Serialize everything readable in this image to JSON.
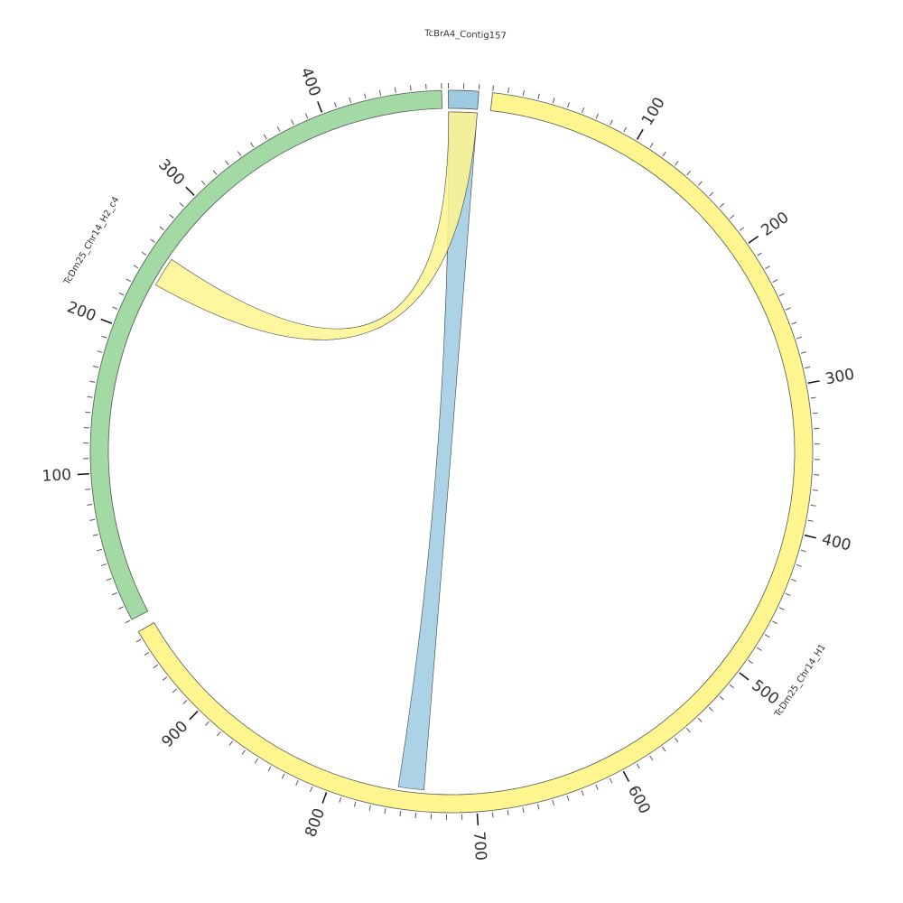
{
  "chart_data": {
    "type": "chord",
    "segments": [
      {
        "name": "TcBrA4_Contig157",
        "length": 20,
        "color": "#9ecae1",
        "ticks": []
      },
      {
        "name": "TcDm25_Chr14_H1",
        "length": 965,
        "color": "#fff68f",
        "ticks": [
          100,
          200,
          300,
          400,
          500,
          600,
          700,
          800,
          900
        ]
      },
      {
        "name": "TcDm25_Chr14_H2_c4",
        "length": 480,
        "color": "#a3d9a5",
        "ticks": [
          100,
          200,
          300,
          400
        ]
      }
    ],
    "minor_tick_interval": 10,
    "links": [
      {
        "color": "#9ecae1",
        "source": {
          "segment": "TcBrA4_Contig157",
          "start": 0,
          "end": 20
        },
        "target": {
          "segment": "TcDm25_Chr14_H1",
          "start": 736,
          "end": 754
        }
      },
      {
        "color": "#fff68f",
        "source": {
          "segment": "TcBrA4_Contig157",
          "start": 0,
          "end": 20
        },
        "target": {
          "segment": "TcDm25_Chr14_H2_c4",
          "start": 236,
          "end": 257
        }
      }
    ]
  }
}
